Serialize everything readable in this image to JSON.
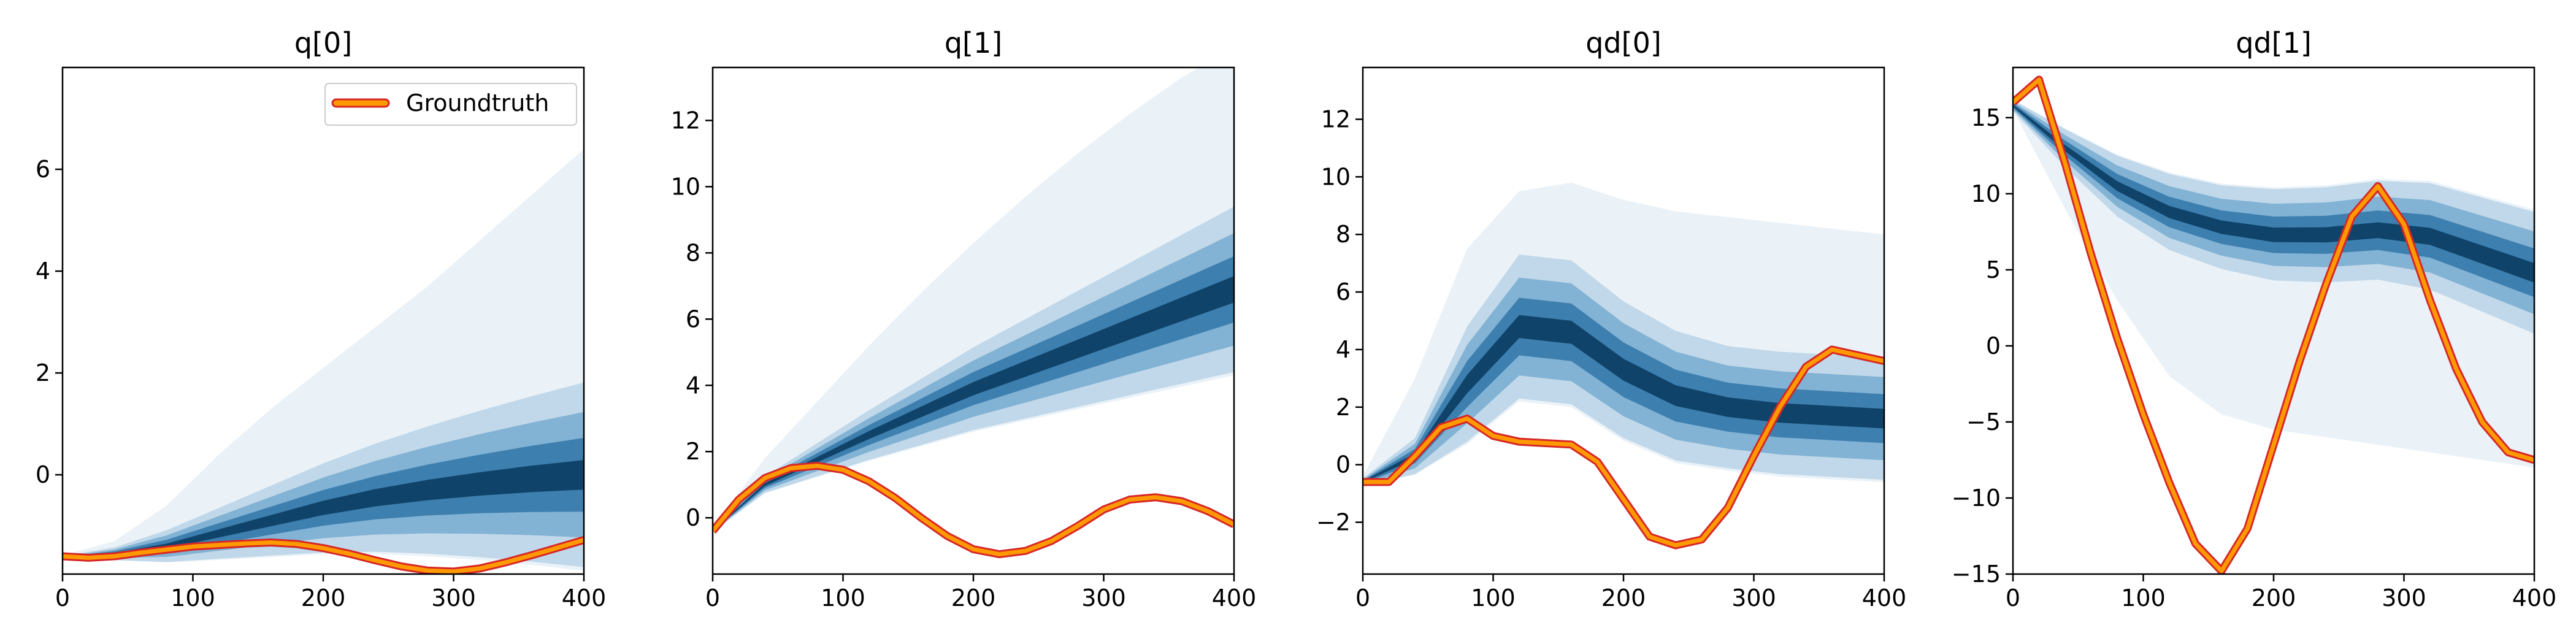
{
  "chart_data": [
    {
      "type": "area",
      "title": "q[0]",
      "xlim": [
        0,
        400
      ],
      "ylim": [
        -1.95,
        8.0
      ],
      "xticks": [
        0,
        100,
        200,
        300,
        400
      ],
      "yticks": [
        0,
        2,
        4,
        6
      ],
      "legend": {
        "label": "Groundtruth",
        "placement": "top-right"
      },
      "groundtruth": {
        "name": "Groundtruth",
        "x": [
          0,
          20,
          40,
          60,
          80,
          100,
          120,
          140,
          160,
          180,
          200,
          220,
          240,
          260,
          280,
          300,
          320,
          340,
          360,
          380,
          400
        ],
        "y": [
          -1.6,
          -1.63,
          -1.6,
          -1.53,
          -1.47,
          -1.41,
          -1.38,
          -1.35,
          -1.33,
          -1.36,
          -1.44,
          -1.55,
          -1.68,
          -1.8,
          -1.88,
          -1.9,
          -1.84,
          -1.72,
          -1.58,
          -1.43,
          -1.28
        ]
      },
      "distribution": {
        "x": [
          0,
          40,
          80,
          120,
          160,
          200,
          240,
          280,
          320,
          360,
          400
        ],
        "mean": [
          -1.62,
          -1.55,
          -1.4,
          -1.15,
          -0.9,
          -0.65,
          -0.45,
          -0.3,
          -0.18,
          -0.08,
          0.0
        ],
        "inner_spread": [
          0.02,
          0.1,
          0.25,
          0.4,
          0.55,
          0.7,
          0.85,
          1.0,
          1.15,
          1.3,
          1.45
        ],
        "outer_upper": [
          -1.58,
          -1.3,
          -0.6,
          0.4,
          1.3,
          2.1,
          2.9,
          3.7,
          4.6,
          5.5,
          6.4
        ]
      }
    },
    {
      "type": "area",
      "title": "q[1]",
      "xlim": [
        0,
        400
      ],
      "ylim": [
        -1.7,
        13.6
      ],
      "xticks": [
        0,
        100,
        200,
        300,
        400
      ],
      "yticks": [
        0,
        2,
        4,
        6,
        8,
        10,
        12
      ],
      "groundtruth": {
        "x": [
          0,
          20,
          40,
          60,
          80,
          100,
          120,
          140,
          160,
          180,
          200,
          220,
          240,
          260,
          280,
          300,
          320,
          340,
          360,
          380,
          400
        ],
        "y": [
          -0.4,
          0.55,
          1.2,
          1.5,
          1.57,
          1.45,
          1.1,
          0.6,
          0.0,
          -0.55,
          -0.95,
          -1.1,
          -1.0,
          -0.7,
          -0.25,
          0.25,
          0.55,
          0.62,
          0.5,
          0.2,
          -0.2
        ]
      },
      "distribution": {
        "x": [
          0,
          40,
          80,
          120,
          160,
          200,
          240,
          280,
          320,
          360,
          400
        ],
        "mean": [
          -0.4,
          1.0,
          1.75,
          2.5,
          3.2,
          3.9,
          4.5,
          5.1,
          5.7,
          6.3,
          6.9
        ],
        "inner_spread": [
          0.02,
          0.2,
          0.4,
          0.6,
          0.8,
          1.0,
          1.2,
          1.4,
          1.6,
          1.8,
          2.0
        ],
        "outer_upper": [
          -0.3,
          1.8,
          3.5,
          5.2,
          6.8,
          8.3,
          9.7,
          11.0,
          12.2,
          13.3,
          14.2
        ]
      }
    },
    {
      "type": "area",
      "title": "qd[0]",
      "xlim": [
        0,
        400
      ],
      "ylim": [
        -3.8,
        13.8
      ],
      "xticks": [
        0,
        100,
        200,
        300,
        400
      ],
      "yticks": [
        -2,
        0,
        2,
        4,
        6,
        8,
        10,
        12
      ],
      "groundtruth": {
        "x": [
          0,
          20,
          40,
          60,
          80,
          100,
          120,
          140,
          160,
          180,
          200,
          220,
          240,
          260,
          280,
          300,
          320,
          340,
          360,
          380,
          400
        ],
        "y": [
          -0.6,
          -0.6,
          0.3,
          1.3,
          1.6,
          1.0,
          0.8,
          0.75,
          0.7,
          0.1,
          -1.2,
          -2.5,
          -2.8,
          -2.6,
          -1.5,
          0.3,
          2.0,
          3.4,
          4.0,
          3.8,
          3.6
        ]
      },
      "distribution": {
        "x": [
          0,
          40,
          80,
          120,
          160,
          200,
          240,
          280,
          320,
          360,
          400
        ],
        "mean": [
          -0.6,
          0.3,
          2.8,
          4.8,
          4.6,
          3.3,
          2.4,
          2.0,
          1.8,
          1.7,
          1.6
        ],
        "inner_spread": [
          0.1,
          0.5,
          1.6,
          2.0,
          2.0,
          1.9,
          1.8,
          1.7,
          1.7,
          1.7,
          1.7
        ],
        "outer_upper": [
          -0.4,
          3.0,
          7.5,
          9.5,
          9.8,
          9.2,
          8.8,
          8.6,
          8.4,
          8.2,
          8.0
        ]
      }
    },
    {
      "type": "area",
      "title": "qd[1]",
      "xlim": [
        0,
        400
      ],
      "ylim": [
        -15,
        18.3
      ],
      "xticks": [
        0,
        100,
        200,
        300,
        400
      ],
      "yticks": [
        -15,
        -10,
        -5,
        0,
        5,
        10,
        15
      ],
      "groundtruth": {
        "x": [
          0,
          20,
          40,
          60,
          80,
          100,
          120,
          140,
          160,
          180,
          200,
          220,
          240,
          260,
          280,
          300,
          320,
          340,
          360,
          380,
          400
        ],
        "y": [
          16.0,
          17.5,
          12.0,
          6.0,
          0.5,
          -4.5,
          -9.0,
          -13.0,
          -14.8,
          -12.0,
          -6.5,
          -1.0,
          4.0,
          8.5,
          10.5,
          8.0,
          3.0,
          -1.5,
          -5.0,
          -7.0,
          -7.5
        ]
      },
      "distribution": {
        "x": [
          0,
          40,
          80,
          120,
          160,
          200,
          240,
          280,
          320,
          360,
          400
        ],
        "mean": [
          15.8,
          13.0,
          10.5,
          8.8,
          7.8,
          7.3,
          7.3,
          7.6,
          7.2,
          6.0,
          4.8
        ],
        "inner_spread": [
          0.3,
          1.0,
          1.6,
          2.0,
          2.2,
          2.4,
          2.5,
          2.6,
          2.8,
          3.0,
          3.2
        ],
        "outer_lower": [
          15.5,
          9.0,
          3.0,
          -2.0,
          -4.5,
          -5.5,
          -6.0,
          -6.5,
          -7.0,
          -7.5,
          -8.0
        ]
      }
    }
  ]
}
